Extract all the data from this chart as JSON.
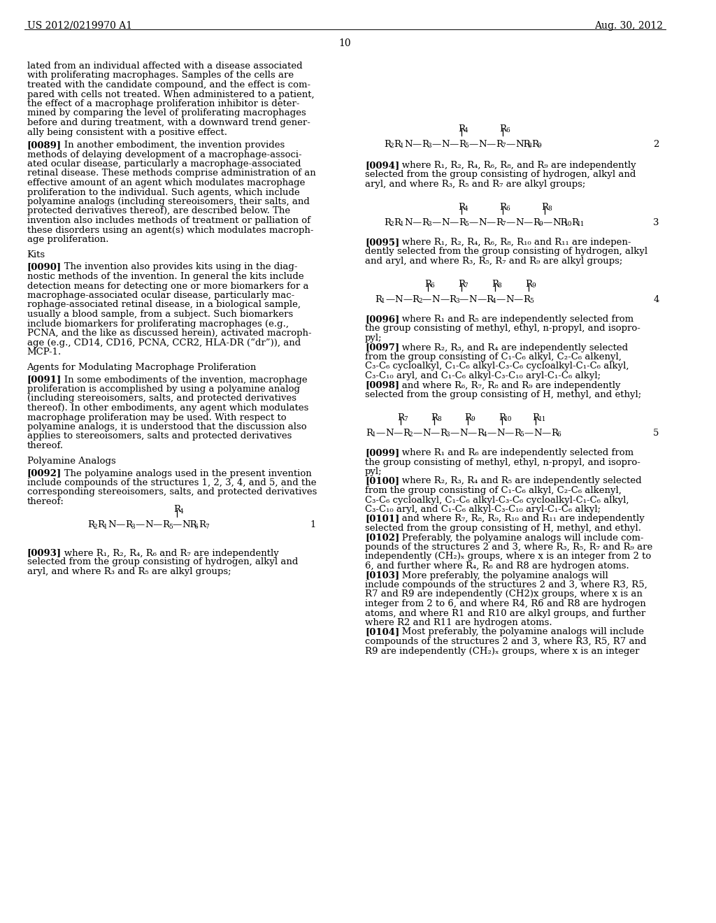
{
  "header_left": "US 2012/0219970 A1",
  "header_right": "Aug. 30, 2012",
  "page_number": "10",
  "bg": "#ffffff",
  "fg": "#000000"
}
